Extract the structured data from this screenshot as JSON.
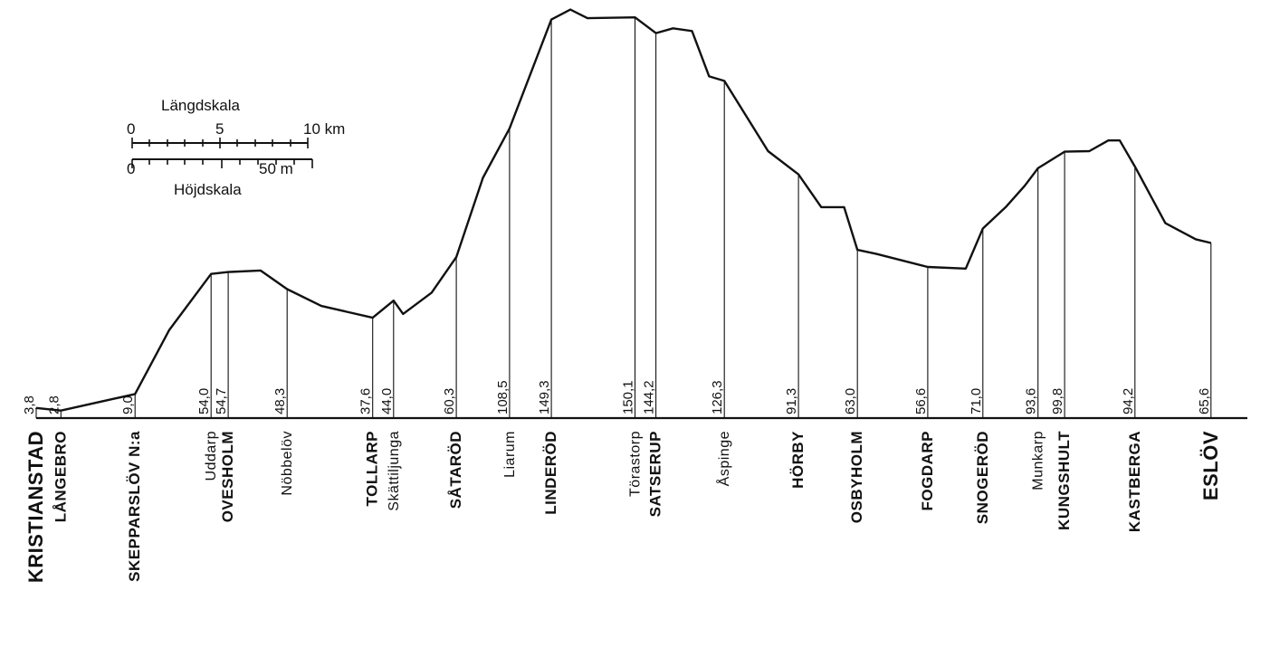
{
  "scale_box": {
    "length_title": "Längdskala",
    "length_ticks": [
      "0",
      "5",
      "10 km"
    ],
    "height_ticks": [
      "0",
      "50 m"
    ],
    "height_title": "Höjdskala"
  },
  "stations": [
    {
      "km": 0.0,
      "elev": 3.8,
      "elev_label": "3,8",
      "name": "KRISTIANSTAD",
      "style": "end"
    },
    {
      "km": 1.3,
      "elev": 2.8,
      "elev_label": "2,8",
      "name": "LÅNGEBRO",
      "style": "major"
    },
    {
      "km": 5.2,
      "elev": 9.0,
      "elev_label": "9,0",
      "name": "SKEPPARSLÖV N:a",
      "style": "major"
    },
    {
      "km": 9.2,
      "elev": 54.0,
      "elev_label": "54,0",
      "name": "Uddarp",
      "style": "minor"
    },
    {
      "km": 10.1,
      "elev": 54.7,
      "elev_label": "54,7",
      "name": "OVESHOLM",
      "style": "major"
    },
    {
      "km": 13.2,
      "elev": 48.3,
      "elev_label": "48,3",
      "name": "Nöbbelöv",
      "style": "minor"
    },
    {
      "km": 17.7,
      "elev": 37.6,
      "elev_label": "37,6",
      "name": "TOLLARP",
      "style": "major"
    },
    {
      "km": 18.8,
      "elev": 44.0,
      "elev_label": "44,0",
      "name": "Skättiljunga",
      "style": "minor"
    },
    {
      "km": 22.1,
      "elev": 60.3,
      "elev_label": "60,3",
      "name": "SÅTARÖD",
      "style": "major"
    },
    {
      "km": 24.9,
      "elev": 108.5,
      "elev_label": "108,5",
      "name": "Liarum",
      "style": "minor"
    },
    {
      "km": 27.1,
      "elev": 149.3,
      "elev_label": "149,3",
      "name": "LINDERÖD",
      "style": "major"
    },
    {
      "km": 31.5,
      "elev": 150.1,
      "elev_label": "150,1",
      "name": "Törastorp",
      "style": "minor"
    },
    {
      "km": 32.6,
      "elev": 144.2,
      "elev_label": "144,2",
      "name": "SATSERUP",
      "style": "major"
    },
    {
      "km": 36.2,
      "elev": 126.3,
      "elev_label": "126,3",
      "name": "Åspinge",
      "style": "minor"
    },
    {
      "km": 40.1,
      "elev": 91.3,
      "elev_label": "91,3",
      "name": "HÖRBY",
      "style": "major"
    },
    {
      "km": 43.2,
      "elev": 63.0,
      "elev_label": "63,0",
      "name": "OSBYHOLM",
      "style": "major"
    },
    {
      "km": 46.9,
      "elev": 56.6,
      "elev_label": "56,6",
      "name": "FOGDARP",
      "style": "major"
    },
    {
      "km": 49.8,
      "elev": 71.0,
      "elev_label": "71,0",
      "name": "SNOGERÖD",
      "style": "major"
    },
    {
      "km": 52.7,
      "elev": 93.6,
      "elev_label": "93,6",
      "name": "Munkarp",
      "style": "minor"
    },
    {
      "km": 54.1,
      "elev": 99.8,
      "elev_label": "99,8",
      "name": "KUNGSHULT",
      "style": "major"
    },
    {
      "km": 57.8,
      "elev": 94.2,
      "elev_label": "94,2",
      "name": "KASTBERGA",
      "style": "major"
    },
    {
      "km": 61.8,
      "elev": 65.6,
      "elev_label": "65,6",
      "name": "ESLÖV",
      "style": "end"
    }
  ]
}
